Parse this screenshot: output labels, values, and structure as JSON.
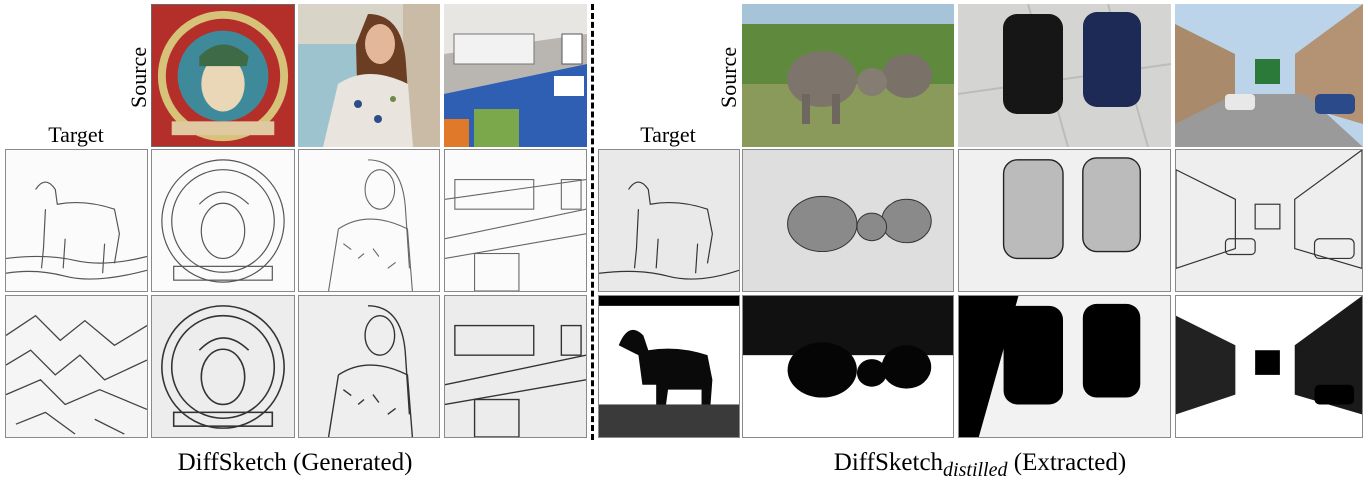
{
  "left": {
    "source_label": "Source",
    "target_label": "Target",
    "caption": "DiffSketch (Generated)",
    "sources": [
      {
        "name": "poster",
        "color": "#b8302b"
      },
      {
        "name": "woman",
        "color": "#b7a79a"
      },
      {
        "name": "room",
        "color": "#9c8f86"
      }
    ],
    "row1_sketches": [
      "horse",
      "poster",
      "woman",
      "room"
    ],
    "row2_sketches": [
      "mountains",
      "poster",
      "woman",
      "room"
    ]
  },
  "right": {
    "source_label": "Source",
    "target_label": "Target",
    "caption_main": "DiffSketch",
    "caption_sub": "distilled",
    "caption_tail": " (Extracted)",
    "sources": [
      {
        "name": "elephants",
        "color": "#6a8a4c"
      },
      {
        "name": "bags",
        "color": "#c9c9c9"
      },
      {
        "name": "street",
        "color": "#8aa3b8"
      }
    ],
    "row1_sketches": [
      "horse",
      "elephants",
      "bags",
      "street"
    ],
    "row2_sketches": [
      "horse-dark",
      "elephants-dark",
      "bags-dark",
      "street-dark"
    ]
  }
}
